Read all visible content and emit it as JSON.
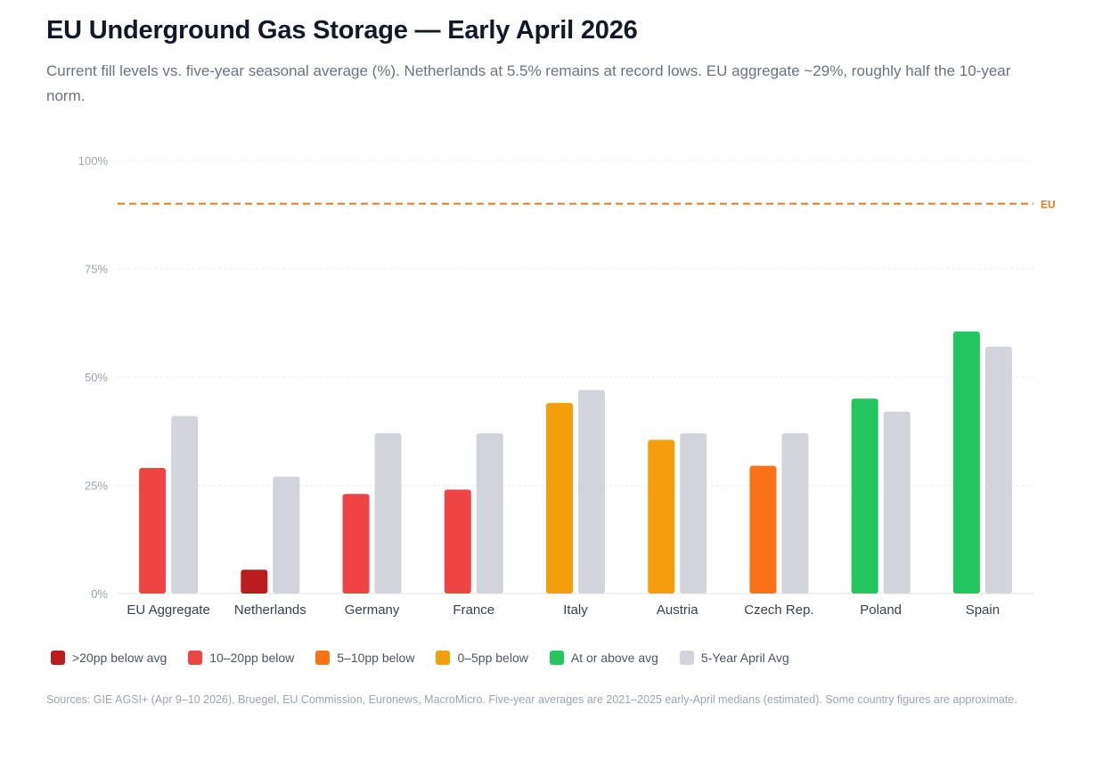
{
  "title": "EU Underground Gas Storage — Early April 2026",
  "subtitle": "Current fill levels vs. five-year seasonal average (%). Netherlands at 5.5% remains at record lows. EU aggregate ~29%, roughly half the 10-year norm.",
  "sources": "Sources: GIE AGSI+ (Apr 9–10 2026), Bruegel, EU Commission, Euronews, MacroMicro. Five-year averages are 2021–2025 early-April medians (estimated). Some country figures are approximate.",
  "legend": [
    {
      "label": ">20pp below avg",
      "color": "#b91c1c"
    },
    {
      "label": "10–20pp below",
      "color": "#ef4444"
    },
    {
      "label": "5–10pp below",
      "color": "#f97316"
    },
    {
      "label": "0–5pp below",
      "color": "#f59e0b"
    },
    {
      "label": "At or above avg",
      "color": "#22c55e"
    },
    {
      "label": "5-Year April Avg",
      "color": "#d1d5db"
    }
  ],
  "chart_data": {
    "type": "bar",
    "categories": [
      "EU Aggregate",
      "Netherlands",
      "Germany",
      "France",
      "Italy",
      "Austria",
      "Czech Rep.",
      "Poland",
      "Spain"
    ],
    "series": [
      {
        "values": [
          29,
          5.5,
          23,
          24,
          44,
          35.5,
          29.5,
          45,
          60.5
        ],
        "colors": [
          "#ef4444",
          "#b91c1c",
          "#ef4444",
          "#ef4444",
          "#f59e0b",
          "#f59e0b",
          "#f97316",
          "#22c55e",
          "#22c55e"
        ]
      },
      {
        "name": "5-Year April Avg",
        "values": [
          41,
          27,
          37,
          37,
          47,
          37,
          37,
          42,
          57
        ],
        "color": "#d1d5db"
      }
    ],
    "ylim": [
      0,
      100
    ],
    "yticks": [
      0,
      25,
      50,
      75,
      100
    ],
    "ytick_labels": [
      "0%",
      "25%",
      "50%",
      "75%",
      "100%"
    ],
    "reference_line": {
      "value": 90,
      "label": "EU",
      "color": "#e07b24"
    },
    "grid": true
  }
}
